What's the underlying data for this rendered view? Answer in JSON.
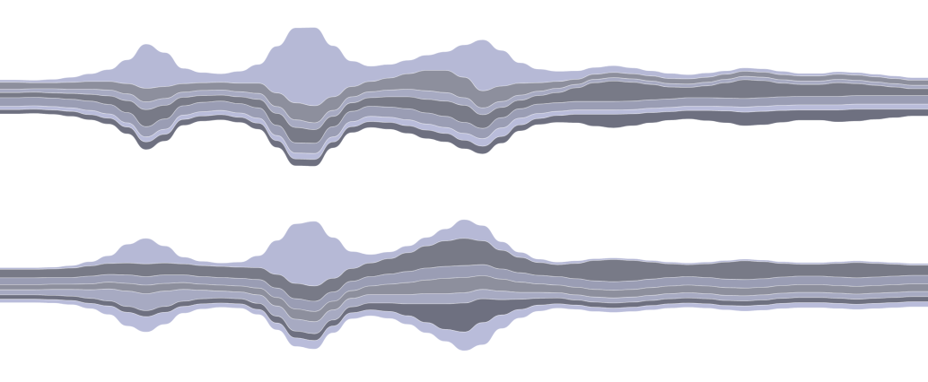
{
  "chart_data": [
    {
      "type": "area",
      "subtype": "streamgraph",
      "baseline": "wiggle",
      "title": "",
      "xlabel": "",
      "ylabel": "",
      "grid": false,
      "legend": "none",
      "x": [
        0,
        1,
        2,
        3,
        4,
        5,
        6,
        7,
        8,
        9,
        10,
        11,
        12,
        13,
        14,
        15,
        16,
        17,
        18,
        19,
        20,
        21,
        22,
        23,
        24,
        25,
        26,
        27,
        28,
        29,
        30,
        31,
        32,
        33,
        34,
        35,
        36,
        37,
        38,
        39,
        40,
        41,
        42,
        43,
        44,
        45,
        46,
        47,
        48,
        49,
        50
      ],
      "series": [
        {
          "color": "#b6b9d6",
          "values": [
            3,
            3,
            3,
            4,
            6,
            9,
            14,
            28,
            52,
            40,
            18,
            12,
            10,
            14,
            22,
            55,
            88,
            92,
            60,
            30,
            18,
            16,
            16,
            18,
            22,
            38,
            60,
            42,
            24,
            16,
            12,
            10,
            8,
            8,
            7,
            6,
            6,
            5,
            5,
            4,
            4,
            4,
            4,
            3,
            3,
            3,
            3,
            3,
            3,
            3,
            3
          ]
        },
        {
          "color": "#8d8f9d",
          "values": [
            8,
            8,
            7,
            7,
            8,
            9,
            10,
            12,
            16,
            14,
            10,
            9,
            9,
            10,
            12,
            16,
            20,
            20,
            16,
            12,
            12,
            14,
            18,
            24,
            26,
            24,
            20,
            18,
            14,
            10,
            8,
            6,
            6,
            6,
            6,
            6,
            6,
            6,
            6,
            6,
            6,
            6,
            6,
            6,
            6,
            6,
            6,
            6,
            6,
            6,
            6
          ]
        },
        {
          "color": "#a7aac2",
          "values": [
            4,
            4,
            4,
            5,
            5,
            6,
            7,
            8,
            9,
            8,
            6,
            6,
            6,
            6,
            7,
            8,
            9,
            8,
            7,
            7,
            7,
            8,
            9,
            10,
            10,
            9,
            8,
            7,
            6,
            5,
            5,
            4,
            4,
            4,
            4,
            4,
            4,
            4,
            4,
            4,
            4,
            4,
            4,
            4,
            4,
            4,
            4,
            4,
            4,
            4,
            4
          ]
        },
        {
          "color": "#787a87",
          "values": [
            6,
            6,
            6,
            6,
            7,
            8,
            10,
            14,
            20,
            16,
            10,
            8,
            7,
            8,
            10,
            14,
            18,
            16,
            12,
            10,
            10,
            12,
            14,
            16,
            18,
            20,
            16,
            12,
            10,
            10,
            12,
            16,
            22,
            24,
            22,
            18,
            14,
            12,
            14,
            18,
            22,
            20,
            16,
            14,
            14,
            16,
            14,
            12,
            10,
            8,
            8
          ]
        },
        {
          "color": "#9a9db4",
          "values": [
            10,
            10,
            10,
            10,
            10,
            11,
            11,
            12,
            12,
            12,
            11,
            11,
            11,
            11,
            12,
            12,
            12,
            12,
            12,
            12,
            12,
            12,
            13,
            13,
            13,
            13,
            12,
            12,
            11,
            11,
            10,
            10,
            10,
            10,
            10,
            10,
            10,
            10,
            10,
            10,
            10,
            10,
            10,
            10,
            10,
            10,
            10,
            10,
            10,
            10,
            10
          ]
        },
        {
          "color": "#b9bcda",
          "values": [
            4,
            4,
            4,
            4,
            4,
            5,
            5,
            5,
            6,
            6,
            5,
            5,
            5,
            5,
            6,
            6,
            7,
            7,
            6,
            6,
            6,
            6,
            7,
            7,
            7,
            8,
            9,
            10,
            8,
            6,
            5,
            5,
            5,
            5,
            5,
            5,
            5,
            5,
            5,
            5,
            6,
            6,
            6,
            6,
            6,
            6,
            6,
            6,
            6,
            6,
            6
          ]
        },
        {
          "color": "#6e7080",
          "values": [
            5,
            5,
            5,
            5,
            6,
            6,
            7,
            8,
            9,
            8,
            7,
            6,
            6,
            6,
            7,
            8,
            8,
            8,
            7,
            7,
            7,
            8,
            9,
            10,
            10,
            10,
            9,
            8,
            7,
            7,
            8,
            10,
            14,
            16,
            14,
            12,
            10,
            10,
            12,
            14,
            16,
            16,
            14,
            12,
            12,
            14,
            14,
            12,
            10,
            8,
            8
          ]
        }
      ]
    },
    {
      "type": "area",
      "subtype": "streamgraph",
      "baseline": "wiggle",
      "title": "",
      "xlabel": "",
      "ylabel": "",
      "grid": false,
      "legend": "none",
      "x": [
        0,
        1,
        2,
        3,
        4,
        5,
        6,
        7,
        8,
        9,
        10,
        11,
        12,
        13,
        14,
        15,
        16,
        17,
        18,
        19,
        20,
        21,
        22,
        23,
        24,
        25,
        26,
        27,
        28,
        29,
        30,
        31,
        32,
        33,
        34,
        35,
        36,
        37,
        38,
        39,
        40,
        41,
        42,
        43,
        44,
        45,
        46,
        47,
        48,
        49,
        50
      ],
      "series": [
        {
          "color": "#b6b9d6",
          "values": [
            2,
            2,
            2,
            2,
            3,
            5,
            9,
            22,
            30,
            20,
            8,
            5,
            4,
            6,
            14,
            40,
            70,
            76,
            48,
            20,
            10,
            8,
            8,
            10,
            14,
            22,
            18,
            10,
            6,
            4,
            3,
            3,
            2,
            2,
            2,
            2,
            2,
            2,
            2,
            2,
            2,
            2,
            2,
            2,
            2,
            2,
            2,
            2,
            2,
            2,
            2
          ]
        },
        {
          "color": "#787a87",
          "values": [
            10,
            10,
            10,
            10,
            11,
            12,
            13,
            14,
            15,
            14,
            13,
            13,
            13,
            13,
            14,
            16,
            18,
            18,
            16,
            15,
            16,
            18,
            22,
            26,
            30,
            32,
            28,
            22,
            18,
            15,
            14,
            18,
            24,
            26,
            24,
            20,
            16,
            14,
            16,
            20,
            22,
            20,
            16,
            14,
            14,
            16,
            18,
            16,
            14,
            12,
            12
          ]
        },
        {
          "color": "#9a9db4",
          "values": [
            8,
            8,
            8,
            8,
            8,
            9,
            9,
            10,
            10,
            10,
            9,
            9,
            9,
            9,
            10,
            11,
            12,
            12,
            11,
            11,
            11,
            12,
            13,
            14,
            14,
            14,
            13,
            12,
            11,
            10,
            10,
            10,
            10,
            10,
            10,
            10,
            10,
            10,
            10,
            10,
            10,
            10,
            10,
            10,
            10,
            10,
            10,
            10,
            10,
            10,
            10
          ]
        },
        {
          "color": "#8d8f9d",
          "values": [
            6,
            6,
            6,
            6,
            6,
            7,
            8,
            9,
            10,
            9,
            8,
            7,
            7,
            7,
            8,
            10,
            12,
            12,
            10,
            9,
            10,
            12,
            14,
            16,
            18,
            18,
            16,
            14,
            12,
            10,
            9,
            9,
            9,
            9,
            9,
            9,
            9,
            9,
            9,
            9,
            9,
            9,
            9,
            9,
            9,
            9,
            9,
            9,
            9,
            9,
            9
          ]
        },
        {
          "color": "#a7aac2",
          "values": [
            6,
            6,
            6,
            7,
            8,
            10,
            14,
            18,
            20,
            18,
            14,
            10,
            8,
            8,
            10,
            12,
            14,
            14,
            12,
            10,
            10,
            10,
            11,
            12,
            12,
            12,
            11,
            10,
            8,
            7,
            6,
            6,
            6,
            6,
            6,
            6,
            6,
            6,
            6,
            6,
            6,
            6,
            6,
            6,
            6,
            6,
            6,
            6,
            6,
            6,
            6
          ]
        },
        {
          "color": "#6e7080",
          "values": [
            5,
            5,
            5,
            5,
            5,
            6,
            6,
            7,
            7,
            7,
            6,
            6,
            6,
            6,
            7,
            8,
            8,
            8,
            7,
            7,
            8,
            10,
            14,
            22,
            30,
            34,
            28,
            18,
            12,
            8,
            7,
            6,
            6,
            6,
            6,
            6,
            6,
            6,
            6,
            6,
            6,
            6,
            6,
            6,
            6,
            6,
            6,
            6,
            6,
            6,
            6
          ]
        },
        {
          "color": "#b9bcda",
          "values": [
            4,
            4,
            4,
            4,
            5,
            6,
            10,
            16,
            18,
            14,
            8,
            6,
            5,
            5,
            6,
            8,
            10,
            10,
            8,
            7,
            7,
            8,
            10,
            12,
            14,
            22,
            26,
            16,
            10,
            7,
            5,
            5,
            5,
            5,
            5,
            5,
            5,
            5,
            5,
            5,
            6,
            6,
            6,
            6,
            6,
            6,
            6,
            6,
            6,
            6,
            6
          ]
        }
      ]
    }
  ]
}
